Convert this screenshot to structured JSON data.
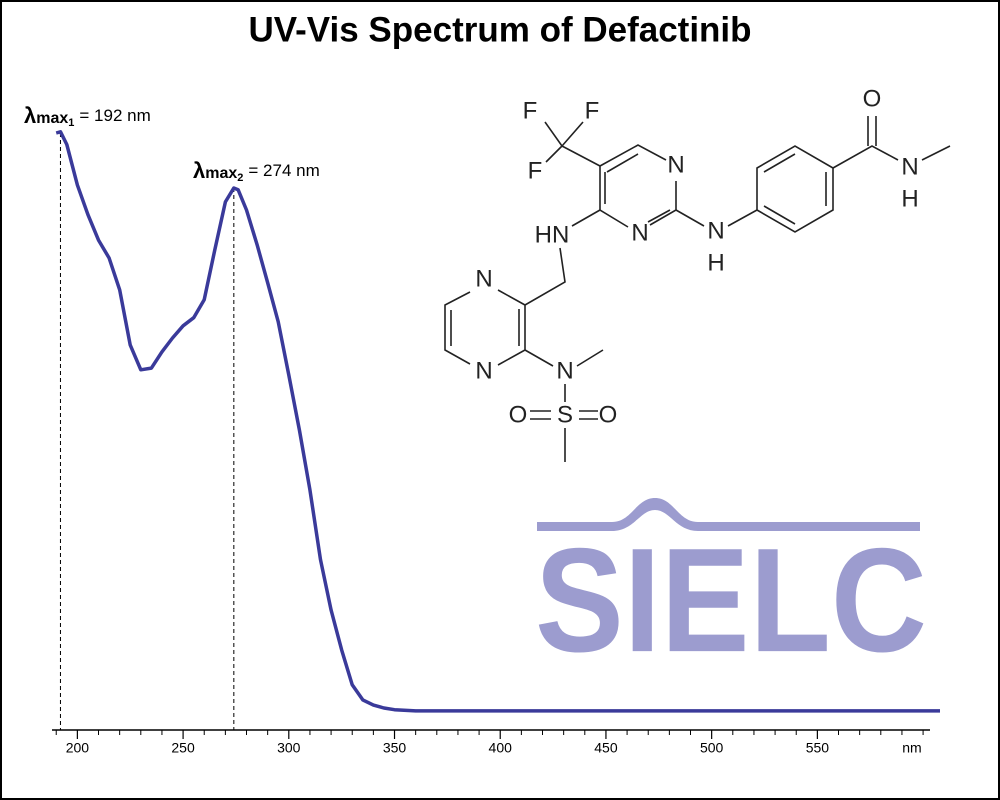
{
  "chart_data": {
    "type": "line",
    "title": "UV-Vis Spectrum of Defactinib",
    "x_label": "nm",
    "x": [
      190,
      192,
      195,
      200,
      205,
      210,
      215,
      220,
      225,
      230,
      235,
      240,
      245,
      250,
      255,
      260,
      265,
      270,
      274,
      276,
      280,
      285,
      290,
      295,
      300,
      305,
      310,
      315,
      320,
      325,
      330,
      335,
      340,
      345,
      350,
      360,
      400,
      450,
      500,
      550,
      608
    ],
    "series": [
      {
        "color": "#3a3a9a",
        "values": [
          0.998,
          1.0,
          0.978,
          0.908,
          0.857,
          0.813,
          0.782,
          0.727,
          0.632,
          0.589,
          0.592,
          0.62,
          0.644,
          0.665,
          0.679,
          0.71,
          0.796,
          0.879,
          0.903,
          0.9,
          0.865,
          0.805,
          0.739,
          0.672,
          0.58,
          0.485,
          0.382,
          0.261,
          0.174,
          0.105,
          0.045,
          0.019,
          0.01,
          0.005,
          0.002,
          0.0,
          0.0,
          0.0,
          0.0,
          0.0,
          0.0
        ]
      }
    ],
    "xlim": [
      188,
      608
    ],
    "ylim": [
      -0.033,
      1.105
    ],
    "xticks": [
      200,
      250,
      300,
      350,
      400,
      450,
      500,
      550
    ],
    "xminor": [
      190,
      210,
      220,
      230,
      240,
      260,
      270,
      280,
      290,
      310,
      320,
      330,
      340,
      360,
      370,
      380,
      390,
      410,
      420,
      430,
      440,
      460,
      470,
      480,
      490,
      510,
      520,
      530,
      540,
      560,
      570,
      580,
      590,
      600
    ],
    "annotations": [
      {
        "symbol": "λ",
        "sub": "max",
        "index": "1",
        "text": "= 192 nm",
        "x": 192
      },
      {
        "symbol": "λ",
        "sub": "max",
        "index": "2",
        "text": "= 274 nm",
        "x": 274
      }
    ],
    "structure": {
      "atoms": [
        "F",
        "F",
        "F",
        "N",
        "N",
        "HN",
        "N",
        "H",
        "O",
        "N",
        "H",
        "N",
        "N",
        "N",
        "S",
        "O",
        "O"
      ]
    },
    "logo": "SIELC"
  }
}
